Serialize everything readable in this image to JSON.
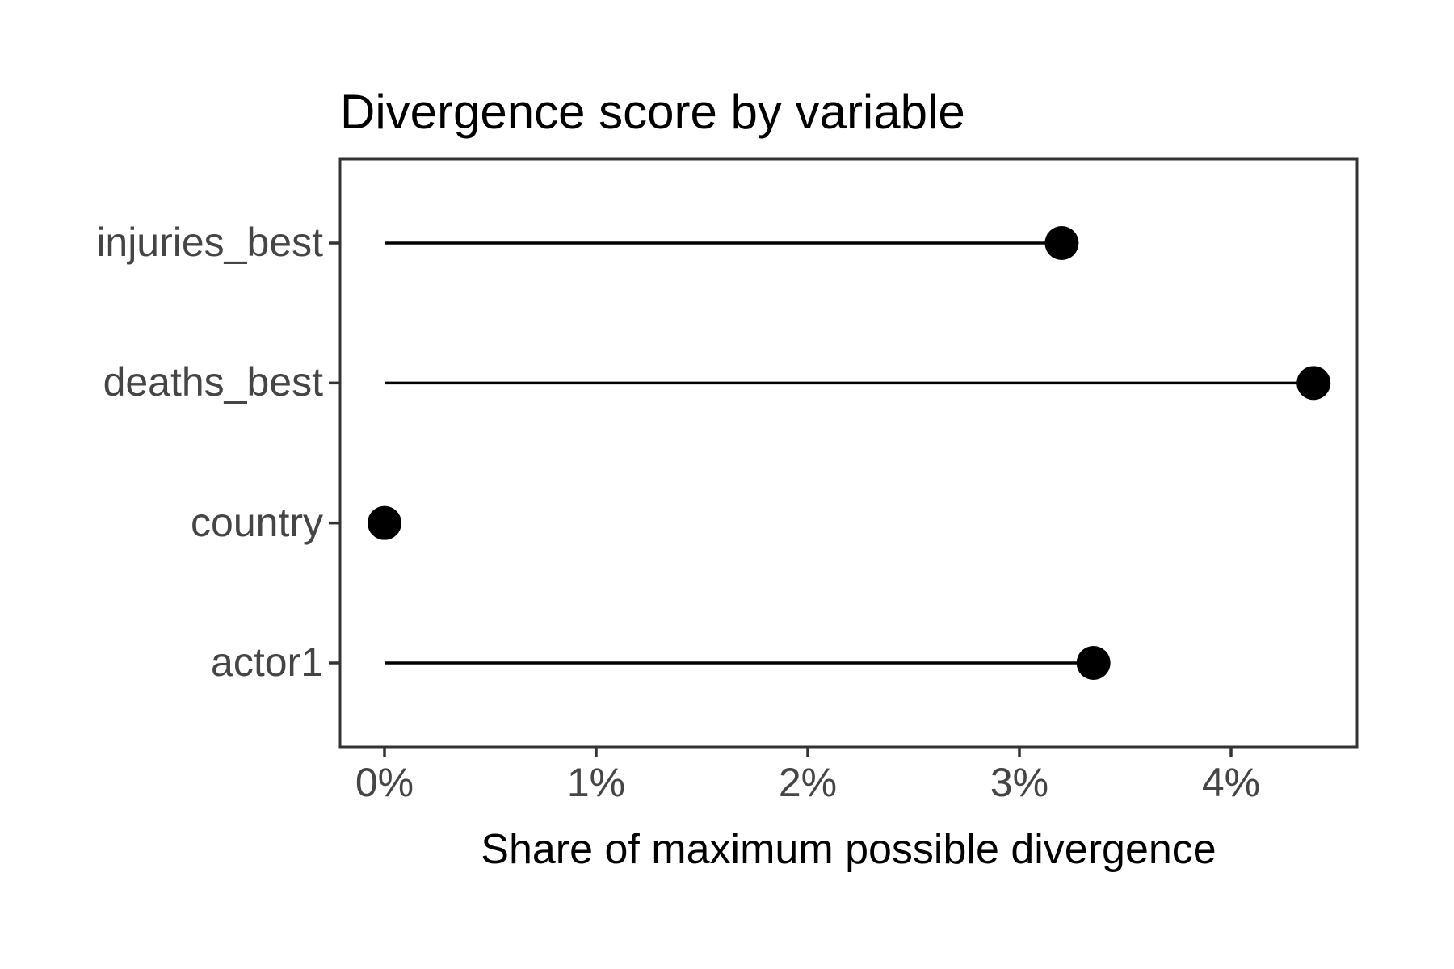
{
  "page": {
    "background_color": "#ffffff"
  },
  "chart_data": {
    "type": "scatter",
    "variant": "horizontal-lollipop",
    "title": "Divergence score by variable",
    "xlabel": "Share of maximum possible divergence",
    "ylabel": "",
    "categories": [
      "injuries_best",
      "deaths_best",
      "country",
      "actor1"
    ],
    "values_pct": [
      3.2,
      4.39,
      0,
      3.35
    ],
    "baseline_pct": 0,
    "xlim_pct": [
      -0.21,
      4.6
    ],
    "x_ticks": [
      {
        "value": 0,
        "label": "0%"
      },
      {
        "value": 1,
        "label": "1%"
      },
      {
        "value": 2,
        "label": "2%"
      },
      {
        "value": 3,
        "label": "3%"
      },
      {
        "value": 4,
        "label": "4%"
      }
    ],
    "grid": false,
    "legend": "none",
    "colors": {
      "point": "#000000",
      "stem": "#000000",
      "panel_border": "#333333",
      "tick_mark": "#333333",
      "axis_text": "#454545",
      "title_text": "#000000",
      "axis_title_text": "#000000"
    }
  }
}
